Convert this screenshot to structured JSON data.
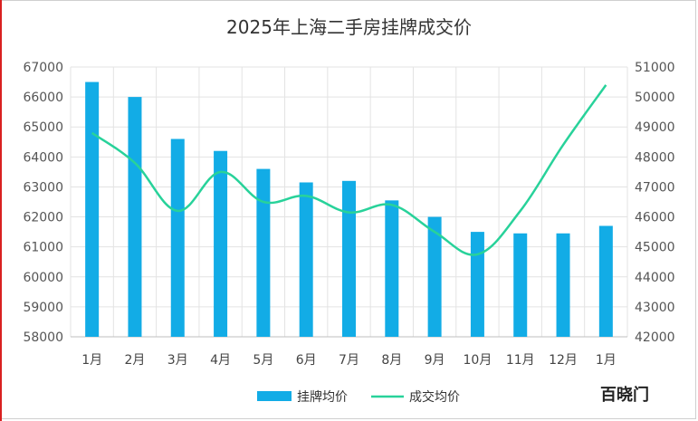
{
  "chart_data": {
    "type": "bar+line",
    "title": "2025年上海二手房挂牌成交价",
    "categories": [
      "1月",
      "2月",
      "3月",
      "4月",
      "5月",
      "6月",
      "7月",
      "8月",
      "9月",
      "10月",
      "11月",
      "12月",
      "1月"
    ],
    "series": [
      {
        "name": "挂牌均价",
        "type": "bar",
        "axis": "left",
        "color": "#12ACE6",
        "values": [
          66500,
          66000,
          64600,
          64200,
          63600,
          63150,
          63200,
          62550,
          62000,
          61500,
          61450,
          61450,
          61700
        ]
      },
      {
        "name": "成交均价",
        "type": "line",
        "axis": "right",
        "color": "#28D29A",
        "values": [
          48800,
          47800,
          46200,
          47500,
          46500,
          46700,
          46150,
          46400,
          45500,
          44750,
          46200,
          48400,
          50400
        ]
      }
    ],
    "y_left": {
      "min": 58000,
      "max": 67000,
      "ticks": [
        58000,
        59000,
        60000,
        61000,
        62000,
        63000,
        64000,
        65000,
        66000,
        67000
      ]
    },
    "y_right": {
      "min": 42000,
      "max": 51000,
      "ticks": [
        42000,
        43000,
        44000,
        45000,
        46000,
        47000,
        48000,
        49000,
        50000,
        51000
      ]
    },
    "grid": true,
    "legend_position": "bottom"
  },
  "watermark_text": "百晓门"
}
